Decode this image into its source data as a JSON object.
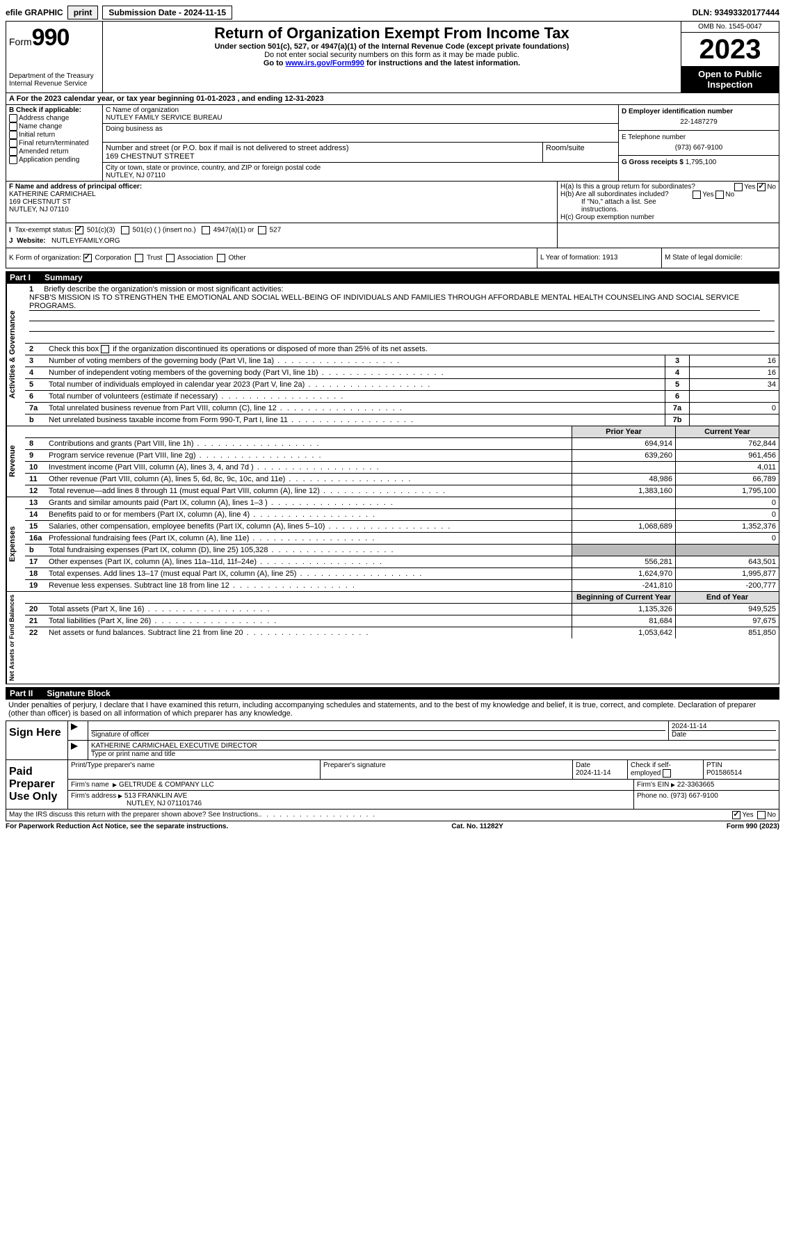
{
  "topbar": {
    "efile": "efile GRAPHIC",
    "print": "print",
    "submission": "Submission Date - 2024-11-15",
    "dln": "DLN: 93493320177444"
  },
  "header": {
    "form": "Form",
    "num": "990",
    "dept": "Department of the Treasury\nInternal Revenue Service",
    "title": "Return of Organization Exempt From Income Tax",
    "sub1": "Under section 501(c), 527, or 4947(a)(1) of the Internal Revenue Code (except private foundations)",
    "sub2": "Do not enter social security numbers on this form as it may be made public.",
    "sub3_pre": "Go to ",
    "sub3_link": "www.irs.gov/Form990",
    "sub3_post": " for instructions and the latest information.",
    "omb": "OMB No. 1545-0047",
    "year": "2023",
    "inspect": "Open to Public Inspection"
  },
  "rowA": "A For the 2023 calendar year, or tax year beginning 01-01-2023    , and ending 12-31-2023",
  "colB": {
    "header": "B Check if applicable:",
    "items": [
      "Address change",
      "Name change",
      "Initial return",
      "Final return/terminated",
      "Amended return",
      "Application pending"
    ]
  },
  "colC": {
    "name_label": "C Name of organization",
    "name": "NUTLEY FAMILY SERVICE BUREAU",
    "dba": "Doing business as",
    "addr_label": "Number and street (or P.O. box if mail is not delivered to street address)",
    "addr": "169 CHESTNUT STREET",
    "room": "Room/suite",
    "city_label": "City or town, state or province, country, and ZIP or foreign postal code",
    "city": "NUTLEY, NJ  07110"
  },
  "colD": {
    "ein_label": "D Employer identification number",
    "ein": "22-1487279",
    "phone_label": "E Telephone number",
    "phone": "(973) 667-9100",
    "gross_label": "G Gross receipts $",
    "gross": "1,795,100"
  },
  "rowF": {
    "label": "F Name and address of principal officer:",
    "name": "KATHERINE CARMICHAEL",
    "addr": "169 CHESTNUT ST",
    "city": "NUTLEY, NJ  07110"
  },
  "rowH": {
    "a": "H(a)  Is this a group return for subordinates?",
    "b": "H(b)  Are all subordinates included?",
    "b2": "If \"No,\" attach a list. See instructions.",
    "c": "H(c)  Group exemption number",
    "yes": "Yes",
    "no": "No"
  },
  "rowI": {
    "label": "Tax-exempt status:",
    "o1": "501(c)(3)",
    "o2": "501(c) (  ) (insert no.)",
    "o3": "4947(a)(1) or",
    "o4": "527"
  },
  "rowJ": {
    "label": "Website:",
    "val": "NUTLEYFAMILY.ORG"
  },
  "rowK": {
    "label": "K Form of organization:",
    "o1": "Corporation",
    "o2": "Trust",
    "o3": "Association",
    "o4": "Other"
  },
  "rowL": "L Year of formation: 1913",
  "rowM": "M State of legal domicile:",
  "part1": {
    "label": "Part I",
    "title": "Summary"
  },
  "mission": {
    "num": "1",
    "text": "Briefly describe the organization's mission or most significant activities:",
    "val": "NFSB'S MISSION IS TO STRENGTHEN THE EMOTIONAL AND SOCIAL WELL-BEING OF INDIVIDUALS AND FAMILIES THROUGH AFFORDABLE MENTAL HEALTH COUNSELING AND SOCIAL SERVICE PROGRAMS."
  },
  "gov_lines": [
    {
      "n": "2",
      "t": "Check this box      if the organization discontinued its operations or disposed of more than 25% of its net assets.",
      "box": "",
      "v": ""
    },
    {
      "n": "3",
      "t": "Number of voting members of the governing body (Part VI, line 1a)",
      "box": "3",
      "v": "16"
    },
    {
      "n": "4",
      "t": "Number of independent voting members of the governing body (Part VI, line 1b)",
      "box": "4",
      "v": "16"
    },
    {
      "n": "5",
      "t": "Total number of individuals employed in calendar year 2023 (Part V, line 2a)",
      "box": "5",
      "v": "34"
    },
    {
      "n": "6",
      "t": "Total number of volunteers (estimate if necessary)",
      "box": "6",
      "v": ""
    },
    {
      "n": "7a",
      "t": "Total unrelated business revenue from Part VIII, column (C), line 12",
      "box": "7a",
      "v": "0"
    },
    {
      "n": "b",
      "t": "Net unrelated business taxable income from Form 990-T, Part I, line 11",
      "box": "7b",
      "v": ""
    }
  ],
  "rev_header": {
    "prior": "Prior Year",
    "current": "Current Year"
  },
  "rev_lines": [
    {
      "n": "8",
      "t": "Contributions and grants (Part VIII, line 1h)",
      "p": "694,914",
      "c": "762,844"
    },
    {
      "n": "9",
      "t": "Program service revenue (Part VIII, line 2g)",
      "p": "639,260",
      "c": "961,456"
    },
    {
      "n": "10",
      "t": "Investment income (Part VIII, column (A), lines 3, 4, and 7d )",
      "p": "",
      "c": "4,011"
    },
    {
      "n": "11",
      "t": "Other revenue (Part VIII, column (A), lines 5, 6d, 8c, 9c, 10c, and 11e)",
      "p": "48,986",
      "c": "66,789"
    },
    {
      "n": "12",
      "t": "Total revenue—add lines 8 through 11 (must equal Part VIII, column (A), line 12)",
      "p": "1,383,160",
      "c": "1,795,100"
    }
  ],
  "exp_lines": [
    {
      "n": "13",
      "t": "Grants and similar amounts paid (Part IX, column (A), lines 1–3 )",
      "p": "",
      "c": "0"
    },
    {
      "n": "14",
      "t": "Benefits paid to or for members (Part IX, column (A), line 4)",
      "p": "",
      "c": "0"
    },
    {
      "n": "15",
      "t": "Salaries, other compensation, employee benefits (Part IX, column (A), lines 5–10)",
      "p": "1,068,689",
      "c": "1,352,376"
    },
    {
      "n": "16a",
      "t": "Professional fundraising fees (Part IX, column (A), line 11e)",
      "p": "",
      "c": "0"
    },
    {
      "n": "b",
      "t": "Total fundraising expenses (Part IX, column (D), line 25) 105,328",
      "p": "grey",
      "c": "grey"
    },
    {
      "n": "17",
      "t": "Other expenses (Part IX, column (A), lines 11a–11d, 11f–24e)",
      "p": "556,281",
      "c": "643,501"
    },
    {
      "n": "18",
      "t": "Total expenses. Add lines 13–17 (must equal Part IX, column (A), line 25)",
      "p": "1,624,970",
      "c": "1,995,877"
    },
    {
      "n": "19",
      "t": "Revenue less expenses. Subtract line 18 from line 12",
      "p": "-241,810",
      "c": "-200,777"
    }
  ],
  "net_header": {
    "prior": "Beginning of Current Year",
    "current": "End of Year"
  },
  "net_lines": [
    {
      "n": "20",
      "t": "Total assets (Part X, line 16)",
      "p": "1,135,326",
      "c": "949,525"
    },
    {
      "n": "21",
      "t": "Total liabilities (Part X, line 26)",
      "p": "81,684",
      "c": "97,675"
    },
    {
      "n": "22",
      "t": "Net assets or fund balances. Subtract line 21 from line 20",
      "p": "1,053,642",
      "c": "851,850"
    }
  ],
  "vlabels": {
    "gov": "Activities & Governance",
    "rev": "Revenue",
    "exp": "Expenses",
    "net": "Net Assets or Fund Balances"
  },
  "part2": {
    "label": "Part II",
    "title": "Signature Block",
    "text": "Under penalties of perjury, I declare that I have examined this return, including accompanying schedules and statements, and to the best of my knowledge and belief, it is true, correct, and complete. Declaration of preparer (other than officer) is based on all information of which preparer has any knowledge."
  },
  "sign": {
    "here": "Sign Here",
    "sig_officer": "Signature of officer",
    "officer": "KATHERINE CARMICHAEL  EXECUTIVE DIRECTOR",
    "type_name": "Type or print name and title",
    "date": "Date",
    "date_val": "2024-11-14"
  },
  "paid": {
    "label": "Paid Preparer Use Only",
    "print_name": "Print/Type preparer's name",
    "sig": "Preparer's signature",
    "date": "Date",
    "date_val": "2024-11-14",
    "check": "Check         if self-employed",
    "ptin_label": "PTIN",
    "ptin": "P01586514",
    "firm_name_label": "Firm's name",
    "firm_name": "GELTRUDE & COMPANY LLC",
    "firm_ein_label": "Firm's EIN",
    "firm_ein": "22-3363665",
    "firm_addr_label": "Firm's address",
    "firm_addr": "513 FRANKLIN AVE",
    "firm_city": "NUTLEY, NJ  071101746",
    "phone_label": "Phone no.",
    "phone": "(973) 667-9100"
  },
  "discuss": "May the IRS discuss this return with the preparer shown above? See Instructions.",
  "footer": {
    "left": "For Paperwork Reduction Act Notice, see the separate instructions.",
    "mid": "Cat. No. 11282Y",
    "right": "Form 990 (2023)"
  }
}
